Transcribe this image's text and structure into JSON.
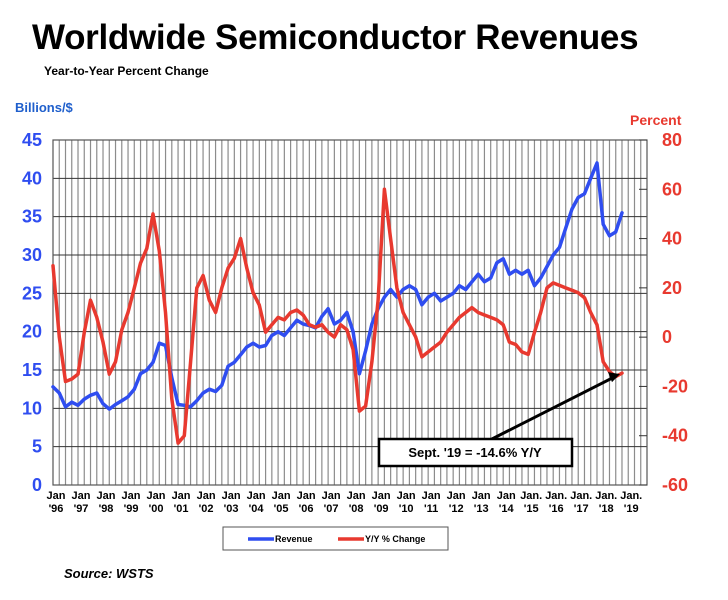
{
  "chart_data": {
    "type": "line",
    "title": "Worldwide Semiconductor Revenues",
    "subtitle": "Year-to-Year Percent Change",
    "ylabel_left": "Billions/$",
    "ylabel_right": "Percent",
    "ylim_left": [
      0,
      45
    ],
    "ylim_right": [
      -60,
      80
    ],
    "yticks_left": [
      "0",
      "5",
      "10",
      "15",
      "20",
      "25",
      "30",
      "35",
      "40",
      "45"
    ],
    "yticks_right": [
      "-60",
      "-40",
      "-20",
      "0",
      "20",
      "40",
      "60",
      "80"
    ],
    "xticks": [
      {
        "top": "Jan",
        "bottom": "'96"
      },
      {
        "top": "Jan",
        "bottom": "'97"
      },
      {
        "top": "Jan",
        "bottom": "'98"
      },
      {
        "top": "Jan",
        "bottom": "'99"
      },
      {
        "top": "Jan",
        "bottom": "'00"
      },
      {
        "top": "Jan",
        "bottom": "'01"
      },
      {
        "top": "Jan",
        "bottom": "'02"
      },
      {
        "top": "Jan",
        "bottom": "'03"
      },
      {
        "top": "Jan",
        "bottom": "'04"
      },
      {
        "top": "Jan",
        "bottom": "'05"
      },
      {
        "top": "Jan",
        "bottom": "'06"
      },
      {
        "top": "Jan",
        "bottom": "'07"
      },
      {
        "top": "Jan",
        "bottom": "'08"
      },
      {
        "top": "Jan",
        "bottom": "'09"
      },
      {
        "top": "Jan",
        "bottom": "'10"
      },
      {
        "top": "Jan",
        "bottom": "'11"
      },
      {
        "top": "Jan",
        "bottom": "'12"
      },
      {
        "top": "Jan",
        "bottom": "'13"
      },
      {
        "top": "Jan",
        "bottom": "'14"
      },
      {
        "top": "Jan.",
        "bottom": "'15"
      },
      {
        "top": "Jan.",
        "bottom": "'16"
      },
      {
        "top": "Jan.",
        "bottom": "'17"
      },
      {
        "top": "Jan.",
        "bottom": "'18"
      },
      {
        "top": "Jan.",
        "bottom": "'19"
      }
    ],
    "x_start": 1996.0,
    "x_end": 2019.75,
    "x_step": 0.25,
    "grid": true,
    "legend_position": "bottom-center",
    "series": [
      {
        "name": "Revenue",
        "axis": "left",
        "color": "#2f4df0",
        "values": [
          12.8,
          12.0,
          10.2,
          10.8,
          10.4,
          11.2,
          11.7,
          12.0,
          10.6,
          9.9,
          10.5,
          11.0,
          11.5,
          12.5,
          14.5,
          15.0,
          16.0,
          18.5,
          18.2,
          14.0,
          10.5,
          10.4,
          10.2,
          11.0,
          12.0,
          12.5,
          12.2,
          13.0,
          15.5,
          16.0,
          17.0,
          18.0,
          18.5,
          18.0,
          18.2,
          19.5,
          20.0,
          19.5,
          20.5,
          21.5,
          21.0,
          20.8,
          20.5,
          22.0,
          23.0,
          21.0,
          21.5,
          22.5,
          20.0,
          14.5,
          17.5,
          21.0,
          23.0,
          24.5,
          25.5,
          24.5,
          25.5,
          26.0,
          25.5,
          23.5,
          24.5,
          25.0,
          24.0,
          24.5,
          25.0,
          26.0,
          25.5,
          26.5,
          27.5,
          26.5,
          27.0,
          29.0,
          29.5,
          27.5,
          28.0,
          27.5,
          28.0,
          26.0,
          27.0,
          28.5,
          30.0,
          31.0,
          33.5,
          36.0,
          37.5,
          38.0,
          40.0,
          42.0,
          34.0,
          32.5,
          33.0,
          35.5
        ]
      },
      {
        "name": "Y/Y % Change",
        "axis": "right",
        "color": "#e8392f",
        "values": [
          29.0,
          0.0,
          -18.0,
          -17.0,
          -15.0,
          2.0,
          15.0,
          8.0,
          -2.0,
          -15.0,
          -10.0,
          3.0,
          10.0,
          20.0,
          30.0,
          36.0,
          50.0,
          35.0,
          10.0,
          -25.0,
          -43.0,
          -40.0,
          -10.0,
          20.0,
          25.0,
          15.0,
          10.0,
          20.0,
          28.0,
          32.0,
          40.0,
          28.0,
          18.0,
          13.0,
          2.0,
          5.0,
          8.0,
          7.0,
          10.0,
          11.0,
          9.0,
          5.0,
          4.0,
          5.0,
          2.0,
          0.0,
          5.0,
          3.0,
          -5.0,
          -30.0,
          -28.0,
          -10.0,
          15.0,
          60.0,
          40.0,
          20.0,
          10.0,
          5.0,
          0.0,
          -8.0,
          -6.0,
          -4.0,
          -2.0,
          2.0,
          5.0,
          8.0,
          10.0,
          12.0,
          10.0,
          9.0,
          8.0,
          7.0,
          5.0,
          -2.0,
          -3.0,
          -6.0,
          -7.0,
          2.0,
          10.0,
          20.0,
          22.0,
          21.0,
          20.0,
          19.0,
          18.0,
          16.0,
          10.0,
          5.0,
          -10.0,
          -14.0,
          -16.0,
          -14.6
        ]
      }
    ],
    "annotation": "Sept. '19 = -14.6% Y/Y",
    "legend": [
      {
        "label": "Revenue",
        "color": "#2f4df0"
      },
      {
        "label": "Y/Y % Change",
        "color": "#e8392f"
      }
    ]
  },
  "source": "Source: WSTS"
}
